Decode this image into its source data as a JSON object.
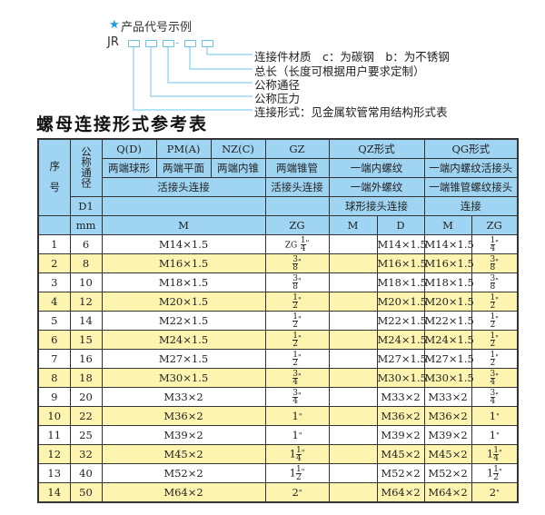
{
  "diagram": {
    "heading": "产品代号示例",
    "star": "★",
    "prefix": "JR",
    "dash": "-",
    "labels": [
      "连接件材质　c：为碳钢　b：为不锈钢",
      "总长（长度可根据用户要求定制）",
      "公称通径",
      "公称压力",
      "连接形式：见金属软管常用结构形式表"
    ]
  },
  "title": "螺母连接形式参考表",
  "header": {
    "seq": "序　号",
    "nominal": "公称通径",
    "d1": "D1",
    "mm": "mm",
    "q": "Q(D)",
    "pm": "PM(A)",
    "nz": "NZ(C)",
    "gz": "GZ",
    "qz": "QZ形式",
    "qg": "QG形式",
    "q_desc": "两端球形",
    "pm_desc": "两端平面",
    "nz_desc": "两端内锥",
    "gz_desc": "两端锥管",
    "qz_desc1": "一端内螺纹",
    "qg_desc1": "一端内螺纹活接头",
    "join1": "活接头连接",
    "gz_join": "活接头连接",
    "qz_desc2": "一端外螺纹",
    "qg_desc2": "一端锥管螺纹接头",
    "qz_desc3": "球形接头连接",
    "qg_desc3": "连接",
    "m": "M",
    "zg": "ZG",
    "qz_m": "M",
    "qz_d": "D",
    "qg_m": "M",
    "qg_zg": "ZG"
  },
  "rows": [
    {
      "no": "1",
      "dn": "6",
      "m": "M14×1.5",
      "gz": {
        "pre": "ZG",
        "num": "1",
        "den": "4",
        "q": "\""
      },
      "qz_m": "",
      "qz_d": "M14×1.5",
      "qg_m": "M14×1.5",
      "qg_zg": {
        "num": "1",
        "den": "4",
        "q": "\""
      }
    },
    {
      "no": "2",
      "dn": "8",
      "m": "M16×1.5",
      "gz": {
        "num": "3",
        "den": "8",
        "q": "\""
      },
      "qz_m": "",
      "qz_d": "M16×1.5",
      "qg_m": "M16×1.5",
      "qg_zg": {
        "num": "3",
        "den": "8",
        "q": "\""
      }
    },
    {
      "no": "3",
      "dn": "10",
      "m": "M18×1.5",
      "gz": {
        "num": "3",
        "den": "8",
        "q": "\""
      },
      "qz_m": "",
      "qz_d": "M18×1.5",
      "qg_m": "M18×1.5",
      "qg_zg": {
        "num": "3",
        "den": "8",
        "q": "\""
      }
    },
    {
      "no": "4",
      "dn": "12",
      "m": "M20×1.5",
      "gz": {
        "num": "1",
        "den": "2",
        "q": "\""
      },
      "qz_m": "",
      "qz_d": "M20×1.5",
      "qg_m": "M20×1.5",
      "qg_zg": {
        "num": "1",
        "den": "2",
        "q": "\""
      }
    },
    {
      "no": "5",
      "dn": "14",
      "m": "M22×1.5",
      "gz": {
        "num": "1",
        "den": "2",
        "q": "\""
      },
      "qz_m": "",
      "qz_d": "M22×1.5",
      "qg_m": "M22×1.5",
      "qg_zg": {
        "num": "1",
        "den": "2",
        "q": "\""
      }
    },
    {
      "no": "6",
      "dn": "15",
      "m": "M24×1.5",
      "gz": {
        "num": "1",
        "den": "2",
        "q": "\""
      },
      "qz_m": "",
      "qz_d": "M24×1.5",
      "qg_m": "M24×1.5",
      "qg_zg": {
        "num": "1",
        "den": "2",
        "q": "\""
      }
    },
    {
      "no": "7",
      "dn": "16",
      "m": "M27×1.5",
      "gz": {
        "num": "1",
        "den": "2",
        "q": "\""
      },
      "qz_m": "",
      "qz_d": "M27×1.5",
      "qg_m": "M27×1.5",
      "qg_zg": {
        "num": "1",
        "den": "2",
        "q": "\""
      }
    },
    {
      "no": "8",
      "dn": "18",
      "m": "M30×1.5",
      "gz": {
        "num": "3",
        "den": "4",
        "q": "\""
      },
      "qz_m": "",
      "qz_d": "M30×1.5",
      "qg_m": "M30×1.5",
      "qg_zg": {
        "num": "3",
        "den": "4",
        "q": "\""
      }
    },
    {
      "no": "9",
      "dn": "20",
      "m": "M33×2",
      "gz": {
        "num": "3",
        "den": "4",
        "q": "\""
      },
      "qz_m": "",
      "qz_d": "M33×2",
      "qg_m": "M33×2",
      "qg_zg": {
        "num": "3",
        "den": "4",
        "q": "\""
      }
    },
    {
      "no": "10",
      "dn": "22",
      "m": "M36×2",
      "gz": {
        "whole": "1",
        "q": "\""
      },
      "qz_m": "",
      "qz_d": "M36×2",
      "qg_m": "M36×2",
      "qg_zg": {
        "whole": "1",
        "q": "\""
      }
    },
    {
      "no": "11",
      "dn": "25",
      "m": "M39×2",
      "gz": {
        "whole": "1",
        "q": "\""
      },
      "qz_m": "",
      "qz_d": "M39×2",
      "qg_m": "M39×2",
      "qg_zg": {
        "whole": "1",
        "q": "\""
      }
    },
    {
      "no": "12",
      "dn": "32",
      "m": "M45×2",
      "gz": {
        "whole": "1",
        "num": "1",
        "den": "4",
        "q": "\""
      },
      "qz_m": "",
      "qz_d": "M45×2",
      "qg_m": "M45×2",
      "qg_zg": {
        "whole": "1",
        "num": "1",
        "den": "4",
        "q": "\""
      }
    },
    {
      "no": "13",
      "dn": "40",
      "m": "M52×2",
      "gz": {
        "whole": "1",
        "num": "1",
        "den": "2",
        "q": "\""
      },
      "qz_m": "",
      "qz_d": "M52×2",
      "qg_m": "M52×2",
      "qg_zg": {
        "whole": "1",
        "num": "1",
        "den": "2",
        "q": "\""
      }
    },
    {
      "no": "14",
      "dn": "50",
      "m": "M64×2",
      "gz": {
        "whole": "2",
        "q": "\""
      },
      "qz_m": "",
      "qz_d": "M64×2",
      "qg_m": "M64×2",
      "qg_zg": {
        "whole": "2",
        "q": "\""
      }
    }
  ]
}
